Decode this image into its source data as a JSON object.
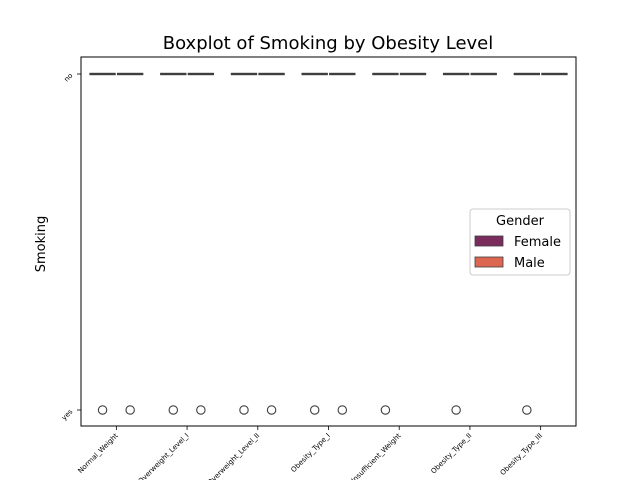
{
  "chart_data": {
    "type": "box",
    "title": "Boxplot of Smoking by Obesity Level",
    "xlabel": "",
    "ylabel": "Smoking",
    "categories": [
      "Normal_Weight",
      "Overweight_Level_I",
      "Overweight_Level_II",
      "Obesity_Type_I",
      "Insufficient_Weight",
      "Obesity_Type_II",
      "Obesity_Type_III"
    ],
    "y_categories": [
      "no",
      "yes"
    ],
    "hue": "Gender",
    "legend": {
      "title": "Gender",
      "position": "center-right"
    },
    "series": [
      {
        "name": "Female",
        "color": "#7a2c5c",
        "median": [
          "no",
          "no",
          "no",
          "no",
          "no",
          "no",
          "no"
        ],
        "outliers": [
          "yes",
          "yes",
          "yes",
          "yes",
          "yes",
          "yes",
          "yes"
        ]
      },
      {
        "name": "Male",
        "color": "#dc6650",
        "median": [
          "no",
          "no",
          "no",
          "no",
          "no",
          "no",
          "no"
        ],
        "outliers": [
          "yes",
          "yes",
          "yes",
          "yes",
          null,
          null,
          null
        ]
      }
    ],
    "grid": false
  }
}
